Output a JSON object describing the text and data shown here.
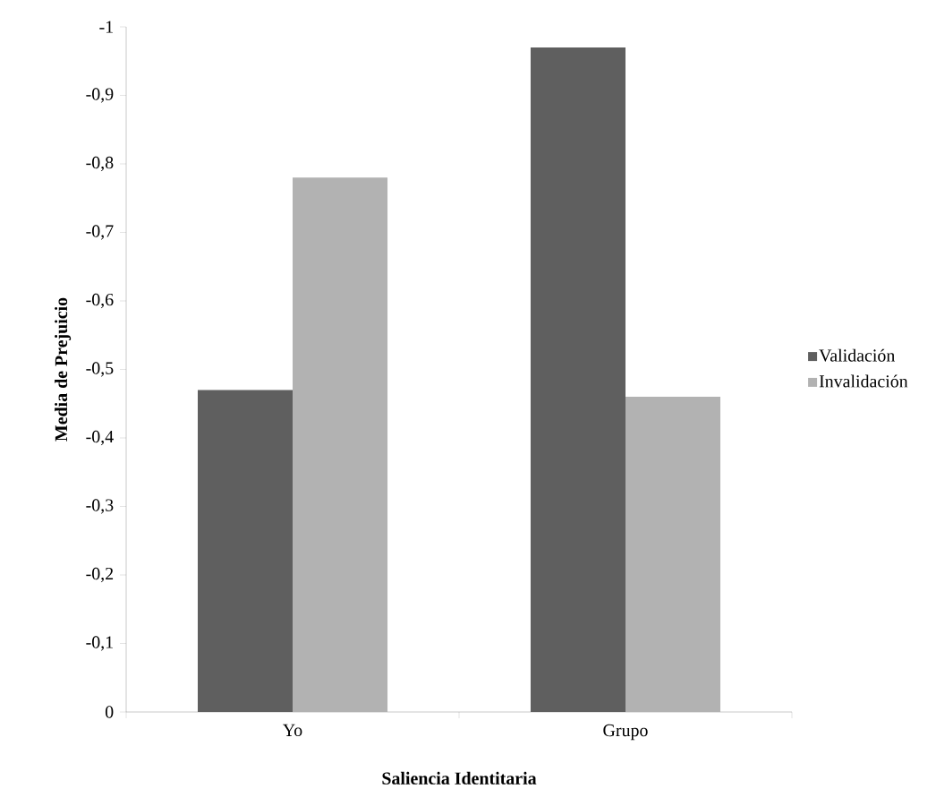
{
  "chart_data": {
    "type": "bar",
    "xlabel": "Saliencia Identitaria",
    "ylabel": "Media de Prejuicio",
    "categories": [
      "Yo",
      "Grupo"
    ],
    "series": [
      {
        "name": "Validación",
        "color": "#5f5f5f",
        "values": [
          -0.47,
          -0.97
        ]
      },
      {
        "name": "Invalidación",
        "color": "#b2b2b2",
        "values": [
          -0.78,
          -0.46
        ]
      }
    ],
    "ylim": [
      0,
      -1
    ],
    "yticks": [
      0,
      {
        "value": -0.1,
        "label": "-0,1"
      },
      {
        "value": -0.2,
        "label": "-0,2"
      },
      {
        "value": -0.3,
        "label": "-0,3"
      },
      {
        "value": -0.4,
        "label": "-0,4"
      },
      {
        "value": -0.5,
        "label": "-0,5"
      },
      {
        "value": -0.6,
        "label": "-0,6"
      },
      {
        "value": -0.7,
        "label": "-0,7"
      },
      {
        "value": -0.8,
        "label": "-0,8"
      },
      {
        "value": -0.9,
        "label": "-0,9"
      },
      -1
    ],
    "grid": false,
    "legend": "right"
  }
}
